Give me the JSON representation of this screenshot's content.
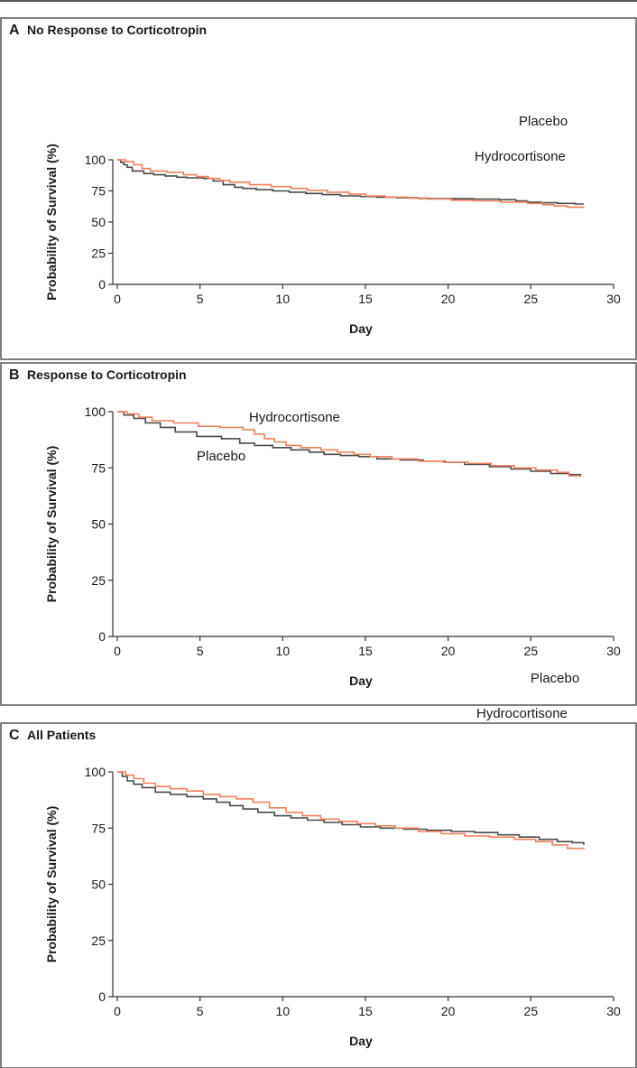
{
  "colors": {
    "frame": "#555555",
    "axis": "#333333",
    "placebo": "#4a4a4a",
    "hydrocortisone": "#f0805d",
    "text": "#1a1a1a"
  },
  "chart_data": [
    {
      "type": "line",
      "letter": "A",
      "title": "No Response to Corticotropin",
      "xlabel": "Day",
      "ylabel": "Probability of Survival (%)",
      "xlim": [
        0,
        30
      ],
      "ylim": [
        0,
        100
      ],
      "xticks": [
        0,
        5,
        10,
        15,
        20,
        25,
        30
      ],
      "yticks": [
        0,
        25,
        50,
        75,
        100
      ],
      "series": [
        {
          "name": "Placebo",
          "color": "#4a4a4a",
          "x": [
            0,
            0.2,
            0.4,
            0.6,
            0.9,
            1.6,
            2.2,
            2.9,
            3.6,
            4.2,
            5.2,
            5.8,
            6.4,
            7.1,
            7.6,
            8.4,
            9.4,
            10.4,
            11.4,
            12.4,
            13.5,
            14.7,
            15.7,
            16.9,
            18.2,
            18.9,
            21.5,
            23.1,
            24.1,
            24.8,
            25.6,
            26.6,
            27.7,
            28.2
          ],
          "y": [
            100,
            98,
            96,
            94,
            91,
            89,
            88,
            87,
            86,
            85.5,
            85,
            83,
            80,
            78,
            77,
            76,
            75,
            74,
            73,
            72,
            71,
            70.5,
            70,
            69.5,
            69,
            68.8,
            68.5,
            68,
            67,
            66,
            65.5,
            65,
            64.5,
            64.5
          ]
        },
        {
          "name": "Hydrocortisone",
          "color": "#f0805d",
          "x": [
            0,
            0.5,
            1.0,
            1.5,
            2.0,
            3.0,
            4.0,
            4.8,
            5.5,
            6.2,
            6.8,
            8.0,
            9.3,
            10.5,
            11.5,
            12.7,
            14.0,
            15.0,
            16.2,
            17.6,
            18.8,
            20.2,
            21.5,
            23.2,
            24.8,
            25.7,
            26.4,
            27.2,
            28.2
          ],
          "y": [
            100,
            98.5,
            96,
            93,
            91,
            90,
            88,
            86.5,
            85,
            83.5,
            82,
            80,
            78.5,
            77,
            75.5,
            74,
            72.5,
            71,
            70,
            69.3,
            68.5,
            67.5,
            67,
            66,
            65,
            64,
            63,
            62,
            61.5
          ]
        }
      ],
      "annotations": [
        {
          "text": "Placebo",
          "series": "Placebo"
        },
        {
          "text": "Hydrocortisone",
          "series": "Hydrocortisone"
        }
      ]
    },
    {
      "type": "line",
      "letter": "B",
      "title": "Response to Corticotropin",
      "xlabel": "Day",
      "ylabel": "Probability of Survival (%)",
      "xlim": [
        0,
        30
      ],
      "ylim": [
        0,
        100
      ],
      "xticks": [
        0,
        5,
        10,
        15,
        20,
        25,
        30
      ],
      "yticks": [
        0,
        25,
        50,
        75,
        100
      ],
      "series": [
        {
          "name": "Placebo",
          "color": "#4a4a4a",
          "x": [
            0,
            0.4,
            1.0,
            1.7,
            2.6,
            3.5,
            4.8,
            6.3,
            7.4,
            8.3,
            9.4,
            10.5,
            11.6,
            12.5,
            13.5,
            14.6,
            15.7,
            17.1,
            18.5,
            19.8,
            21.0,
            22.5,
            23.8,
            25.0,
            26.2,
            27.3,
            28.0
          ],
          "y": [
            100,
            98.5,
            97,
            95,
            93,
            91,
            89,
            88,
            86,
            85,
            84,
            83,
            82,
            81,
            80.5,
            80,
            79,
            78.5,
            78,
            77.5,
            76.5,
            75.5,
            74.5,
            73.5,
            72.5,
            72,
            71.5
          ]
        },
        {
          "name": "Hydrocortisone",
          "color": "#f0805d",
          "x": [
            0,
            0.6,
            1.3,
            2.1,
            3.4,
            4.9,
            6.2,
            7.6,
            8.3,
            8.9,
            9.5,
            10.2,
            11.1,
            12.3,
            13.3,
            14.3,
            15.3,
            16.6,
            18.2,
            19.7,
            21.2,
            22.6,
            24.0,
            25.3,
            26.6,
            27.3,
            28.0
          ],
          "y": [
            100,
            99,
            97.5,
            96,
            95,
            93.5,
            93,
            92,
            90,
            88,
            86.5,
            85,
            84,
            83,
            82,
            81,
            80,
            79,
            78,
            77.5,
            77,
            76,
            75,
            74,
            73,
            71.5,
            71
          ]
        }
      ],
      "annotations": [
        {
          "text": "Hydrocortisone",
          "series": "Hydrocortisone"
        },
        {
          "text": "Placebo",
          "series": "Placebo"
        }
      ]
    },
    {
      "type": "line",
      "letter": "C",
      "title": "All Patients",
      "xlabel": "Day",
      "ylabel": "Probability of Survival (%)",
      "xlim": [
        0,
        30
      ],
      "ylim": [
        0,
        100
      ],
      "xticks": [
        0,
        5,
        10,
        15,
        20,
        25,
        30
      ],
      "yticks": [
        0,
        25,
        50,
        75,
        100
      ],
      "series": [
        {
          "name": "Placebo",
          "color": "#4a4a4a",
          "x": [
            0,
            0.3,
            0.6,
            1.0,
            1.5,
            2.3,
            3.2,
            4.2,
            5.2,
            6.0,
            6.8,
            7.6,
            8.5,
            9.5,
            10.5,
            11.5,
            12.5,
            13.6,
            14.7,
            15.9,
            17.3,
            18.7,
            20.2,
            21.6,
            23.0,
            24.3,
            25.5,
            26.6,
            27.5,
            28.2
          ],
          "y": [
            100,
            98,
            96,
            94.5,
            93,
            91,
            90,
            89,
            88,
            86.5,
            85,
            83.5,
            82,
            80.5,
            79.5,
            78.5,
            77.5,
            76.5,
            75.5,
            75,
            74.5,
            74,
            73.5,
            73,
            72,
            71,
            70,
            69,
            68.5,
            67.5
          ]
        },
        {
          "name": "Hydrocortisone",
          "color": "#f0805d",
          "x": [
            0,
            0.5,
            1.0,
            1.6,
            2.3,
            3.2,
            4.2,
            5.2,
            6.2,
            7.2,
            8.2,
            9.2,
            10.2,
            11.2,
            12.3,
            13.4,
            14.5,
            15.6,
            16.8,
            18.2,
            19.6,
            21.0,
            22.5,
            24.0,
            25.3,
            26.3,
            27.2,
            28.2
          ],
          "y": [
            100,
            98.5,
            97,
            95,
            93.5,
            92.5,
            91.5,
            90,
            89,
            88,
            86.5,
            84,
            82,
            80.5,
            79,
            78,
            77,
            76,
            75,
            73.5,
            72.5,
            71.5,
            71,
            70,
            69,
            67.5,
            66,
            65.5
          ]
        }
      ],
      "annotations": [
        {
          "text": "Placebo",
          "series": "Placebo"
        },
        {
          "text": "Hydrocortisone",
          "series": "Hydrocortisone"
        }
      ]
    }
  ]
}
